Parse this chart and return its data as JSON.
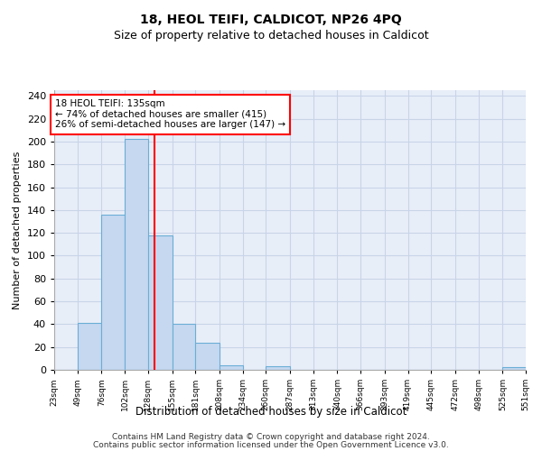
{
  "title1": "18, HEOL TEIFI, CALDICOT, NP26 4PQ",
  "title2": "Size of property relative to detached houses in Caldicot",
  "xlabel": "Distribution of detached houses by size in Caldicot",
  "ylabel": "Number of detached properties",
  "bins": [
    23,
    49,
    76,
    102,
    128,
    155,
    181,
    208,
    234,
    260,
    287,
    313,
    340,
    366,
    393,
    419,
    445,
    472,
    498,
    525,
    551
  ],
  "counts": [
    0,
    41,
    136,
    202,
    118,
    40,
    24,
    4,
    0,
    3,
    0,
    0,
    0,
    0,
    0,
    0,
    0,
    0,
    0,
    2
  ],
  "bar_color": "#c5d8f0",
  "bar_edgecolor": "#6baed6",
  "vline_x": 135,
  "vline_color": "red",
  "annotation_line1": "18 HEOL TEIFI: 135sqm",
  "annotation_line2": "← 74% of detached houses are smaller (415)",
  "annotation_line3": "26% of semi-detached houses are larger (147) →",
  "annotation_box_edgecolor": "red",
  "ylim": [
    0,
    245
  ],
  "yticks": [
    0,
    20,
    40,
    60,
    80,
    100,
    120,
    140,
    160,
    180,
    200,
    220,
    240
  ],
  "plot_bg_color": "#e8eef8",
  "grid_color": "#c8d4e8",
  "footer1": "Contains HM Land Registry data © Crown copyright and database right 2024.",
  "footer2": "Contains public sector information licensed under the Open Government Licence v3.0."
}
